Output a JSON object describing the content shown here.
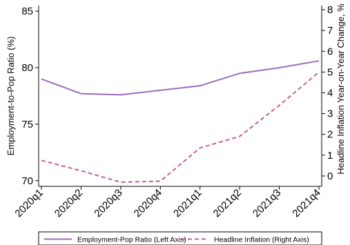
{
  "chart_data": {
    "type": "line",
    "title": "",
    "x": [
      "2020q1",
      "2020q2",
      "2020q3",
      "2020q4",
      "2021q1",
      "2021q2",
      "2021q3",
      "2021q4"
    ],
    "ylabel_left": "Employment-to-Pop Ratio (%)",
    "ylabel_right": "Headline Inflation Year-on-Year Change, %",
    "ylim_left": [
      69.5,
      85.5
    ],
    "ylim_right": [
      -0.5,
      8.2
    ],
    "yticks_left": [
      70,
      75,
      80,
      85
    ],
    "yticks_right": [
      0,
      1,
      2,
      3,
      4,
      5,
      6,
      7,
      8
    ],
    "grid": false,
    "legend_position": "bottom",
    "series": [
      {
        "name": "Employment-Pop Ratio (Left Axis)",
        "axis": "left",
        "style": "solid",
        "color": "#9b6bbf",
        "values": [
          79.0,
          77.7,
          77.6,
          78.0,
          78.4,
          79.5,
          80.0,
          80.6
        ]
      },
      {
        "name": "Headline Inflation (Right Axis)",
        "axis": "right",
        "style": "dashed",
        "color": "#cc5a96",
        "values": [
          0.75,
          0.25,
          -0.3,
          -0.25,
          1.35,
          1.9,
          3.4,
          5.0
        ]
      }
    ]
  }
}
